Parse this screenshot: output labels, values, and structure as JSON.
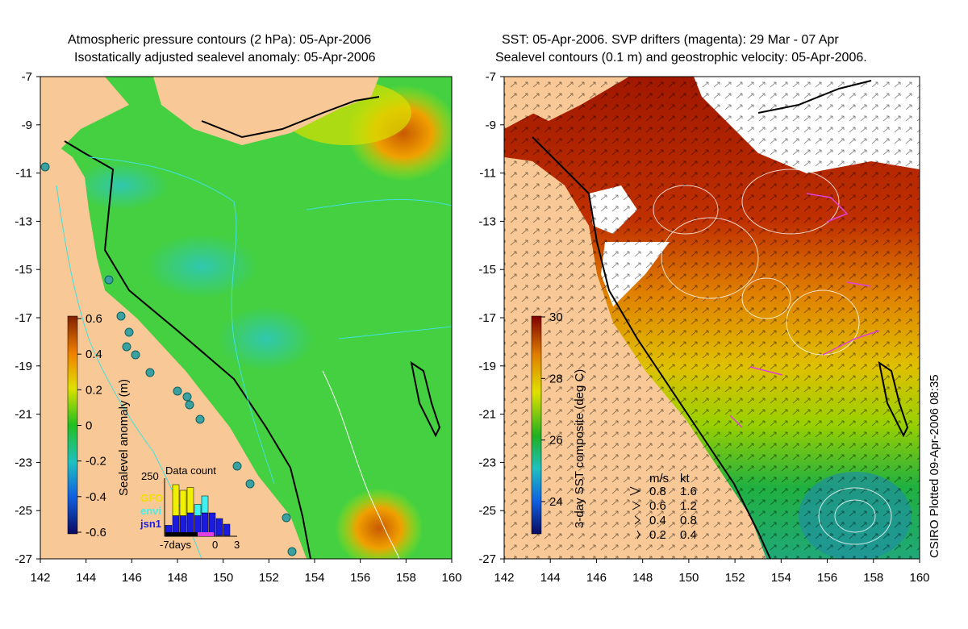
{
  "left_panel": {
    "title_line1": "Atmospheric pressure contours (2 hPa): 05-Apr-2006",
    "title_line2": "Isostatically adjusted sealevel anomaly: 05-Apr-2006",
    "y_ticks": [
      "-7",
      "-9",
      "-11",
      "-13",
      "-15",
      "-17",
      "-19",
      "-21",
      "-23",
      "-25",
      "-27"
    ],
    "x_ticks": [
      "142",
      "144",
      "146",
      "148",
      "150",
      "152",
      "154",
      "156",
      "158",
      "160"
    ],
    "colorbar_label": "Sealevel anomaly (m)",
    "colorbar_ticks": [
      "0.6",
      "0.4",
      "0.2",
      "0",
      "-0.2",
      "-0.4",
      "-0.6"
    ],
    "data_count": {
      "title": "Data count",
      "max_label": "250",
      "sat1": "GFO",
      "sat2": "envi",
      "sat3": "jsn1",
      "axis_left": "-7days",
      "axis_mid": "0",
      "axis_right": "3",
      "bars": [
        {
          "jsn1": 0.18,
          "envi": 0.0,
          "gfo": 0.0
        },
        {
          "jsn1": 0.35,
          "envi": 0.0,
          "gfo": 0.55
        },
        {
          "jsn1": 0.35,
          "envi": 0.0,
          "gfo": 0.45
        },
        {
          "jsn1": 0.4,
          "envi": 0.0,
          "gfo": 0.45
        },
        {
          "jsn1": 0.35,
          "envi": 0.2,
          "gfo": 0.0
        },
        {
          "jsn1": 0.4,
          "envi": 0.3,
          "gfo": 0.0
        },
        {
          "jsn1": 0.4,
          "envi": 0.0,
          "gfo": 0.0
        },
        {
          "jsn1": 0.3,
          "envi": 0.0,
          "gfo": 0.0
        },
        {
          "jsn1": 0.2,
          "envi": 0.0,
          "gfo": 0.0
        }
      ]
    }
  },
  "right_panel": {
    "title_line1": "SST: 05-Apr-2006. SVP drifters (magenta): 29 Mar - 07 Apr",
    "title_line2": "Sealevel contours (0.1 m) and geostrophic velocity: 05-Apr-2006.",
    "y_ticks": [
      "-7",
      "-9",
      "-11",
      "-13",
      "-15",
      "-17",
      "-19",
      "-21",
      "-23",
      "-25",
      "-27"
    ],
    "x_ticks": [
      "142",
      "144",
      "146",
      "148",
      "150",
      "152",
      "154",
      "156",
      "158",
      "160"
    ],
    "colorbar_label": "3-day SST composite (deg C)",
    "colorbar_ticks": [
      "30",
      "28",
      "26",
      "24"
    ],
    "velocity_legend": {
      "unit1": "m/s",
      "unit2": "kt",
      "rows": [
        {
          "ms": "0.8",
          "kt": "1.6"
        },
        {
          "ms": "0.6",
          "kt": "1.2"
        },
        {
          "ms": "0.4",
          "kt": "0.8"
        },
        {
          "ms": "0.2",
          "kt": "0.4"
        }
      ]
    },
    "credit": "CSIRO Plotted 09-Apr-2006 08:35"
  },
  "colors": {
    "land": "#f8c896",
    "sla_low": "#1a237e",
    "sla_mid": "#22c822",
    "sla_high": "#c85a00",
    "sst_low": "#1a237e",
    "sst_mid": "#22b822",
    "sst_high": "#8b0000",
    "cyan": "#40e0e0",
    "magenta": "#e040e0"
  }
}
